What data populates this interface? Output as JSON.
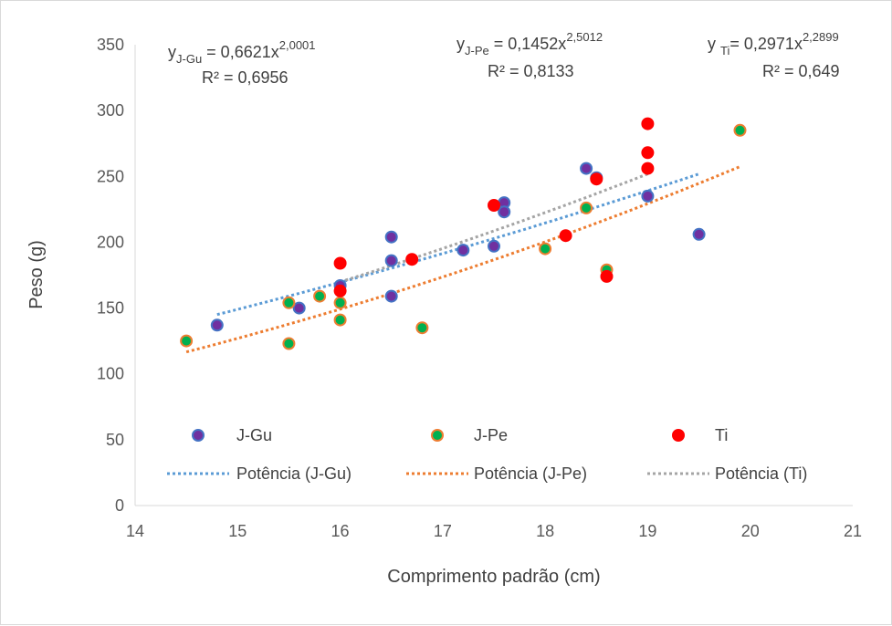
{
  "chart_data": {
    "type": "scatter",
    "title": "",
    "xlabel": "Comprimento padrão (cm)",
    "ylabel": "Peso (g)",
    "xlim": [
      14,
      21
    ],
    "ylim": [
      0,
      350
    ],
    "x_ticks": [
      14,
      15,
      16,
      17,
      18,
      19,
      20,
      21
    ],
    "y_ticks": [
      0,
      50,
      100,
      150,
      200,
      250,
      300,
      350
    ],
    "grid": false,
    "legend_position": "inside-bottom",
    "series": [
      {
        "name": "J-Gu",
        "marker_fill": "#7030a0",
        "marker_edge": "#4472c4",
        "points": [
          [
            14.8,
            137
          ],
          [
            15.6,
            150
          ],
          [
            16.0,
            167
          ],
          [
            16.5,
            204
          ],
          [
            16.5,
            186
          ],
          [
            16.5,
            159
          ],
          [
            17.2,
            194
          ],
          [
            17.5,
            197
          ],
          [
            17.6,
            230
          ],
          [
            17.6,
            223
          ],
          [
            18.4,
            256
          ],
          [
            18.5,
            249
          ],
          [
            19.0,
            235
          ],
          [
            19.5,
            206
          ]
        ]
      },
      {
        "name": "J-Pe",
        "marker_fill": "#00b050",
        "marker_edge": "#ed7d31",
        "points": [
          [
            14.5,
            125
          ],
          [
            15.5,
            154
          ],
          [
            15.5,
            123
          ],
          [
            15.8,
            159
          ],
          [
            16.0,
            154
          ],
          [
            16.0,
            141
          ],
          [
            16.8,
            135
          ],
          [
            18.0,
            195
          ],
          [
            18.4,
            226
          ],
          [
            18.6,
            179
          ],
          [
            19.9,
            285
          ]
        ]
      },
      {
        "name": "Ti",
        "marker_fill": "#ff0000",
        "marker_edge": "#ff0000",
        "points": [
          [
            16.0,
            184
          ],
          [
            16.0,
            163
          ],
          [
            16.7,
            187
          ],
          [
            17.5,
            228
          ],
          [
            18.2,
            205
          ],
          [
            18.5,
            248
          ],
          [
            18.6,
            174
          ],
          [
            19.0,
            290
          ],
          [
            19.0,
            268
          ],
          [
            19.0,
            256
          ]
        ]
      }
    ],
    "trendlines": [
      {
        "name": "Potência (J-Gu)",
        "type": "power",
        "a": 0.6621,
        "b": 2.0001,
        "x_range": [
          14.8,
          19.5
        ],
        "color": "#5b9bd5"
      },
      {
        "name": "Potência (J-Pe)",
        "type": "power",
        "a": 0.1452,
        "b": 2.5012,
        "x_range": [
          14.5,
          19.9
        ],
        "color": "#ed7d31"
      },
      {
        "name": "Potência (Ti)",
        "type": "power",
        "a": 0.2971,
        "b": 2.2899,
        "x_range": [
          16.0,
          19.0
        ],
        "color": "#a5a5a5"
      }
    ],
    "annotations": [
      {
        "id": "jgu",
        "eq_prefix": "y",
        "eq_sub": "J-Gu",
        "eq_mid": " = 0,6621x",
        "eq_sup": "2,0001",
        "r2": "R² = 0,6956"
      },
      {
        "id": "jpe",
        "eq_prefix": "y",
        "eq_sub": "J-Pe",
        "eq_mid": " = 0,1452x",
        "eq_sup": "2,5012",
        "r2": "R² = 0,8133"
      },
      {
        "id": "ti",
        "eq_prefix": "y ",
        "eq_sub": "Ti",
        "eq_mid": "= 0,2971x",
        "eq_sup": "2,2899",
        "r2": "R² = 0,649"
      }
    ]
  }
}
